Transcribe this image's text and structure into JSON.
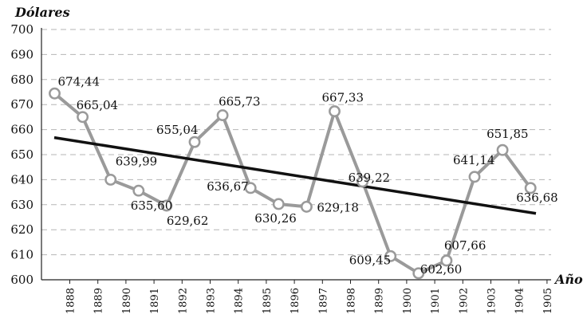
{
  "chart_data": {
    "type": "line",
    "ylabel": "Dólares",
    "xlabel": "Año",
    "ylim": [
      600,
      700
    ],
    "yticks": [
      "600",
      "610",
      "620",
      "630",
      "640",
      "650",
      "660",
      "670",
      "680",
      "690",
      "700"
    ],
    "xticks": [
      "1888",
      "1889",
      "1890",
      "1891",
      "1892",
      "1893",
      "1894",
      "1895",
      "1896",
      "1897",
      "1898",
      "1899",
      "1900",
      "1901",
      "1902",
      "1903",
      "1904",
      "1905"
    ],
    "grid": "horizontal-dashed",
    "series": [
      {
        "values": [
          674.44,
          665.04,
          639.99,
          635.6,
          629.62,
          655.04,
          665.73,
          636.67,
          630.26,
          629.18,
          667.33,
          639.22,
          609.45,
          602.6,
          607.66,
          641.14,
          651.85,
          636.68
        ],
        "labels": [
          "674,44",
          "665,04",
          "639,99",
          "635,60",
          "629,62",
          "655,04",
          "665,73",
          "636,67",
          "630,26",
          "629,18",
          "667,33",
          "639,22",
          "609,45",
          "602,60",
          "607,66",
          "641,14",
          "651,85",
          "636,68"
        ],
        "color": "#9a9a9a"
      }
    ],
    "trend": {
      "start": 656.8,
      "end": 626.5,
      "color": "#111111"
    }
  }
}
